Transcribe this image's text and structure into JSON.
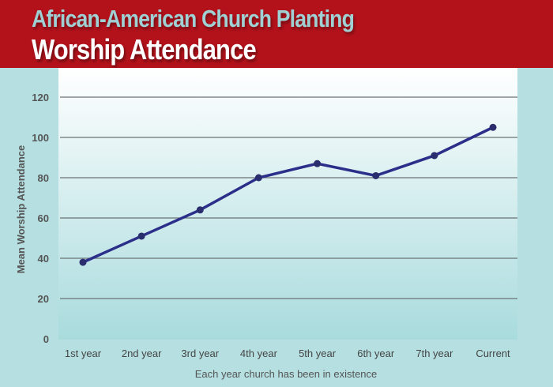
{
  "chart_data": {
    "type": "line",
    "title": "African-American Church Planting",
    "subtitle": "Worship Attendance",
    "xlabel": "Each year church has been in existence",
    "ylabel": "Mean Worship Attendance",
    "categories": [
      "1st year",
      "2nd year",
      "3rd year",
      "4th year",
      "5th year",
      "6th year",
      "7th year",
      "Current"
    ],
    "values": [
      38,
      51,
      64,
      80,
      87,
      81,
      91,
      105
    ],
    "ylim": [
      0,
      120
    ],
    "yticks": [
      0,
      20,
      40,
      60,
      80,
      100,
      120
    ],
    "grid": true,
    "colors": {
      "line": "#2b2f8a",
      "header": "#b3121b",
      "title": "#9fd0d4"
    }
  }
}
